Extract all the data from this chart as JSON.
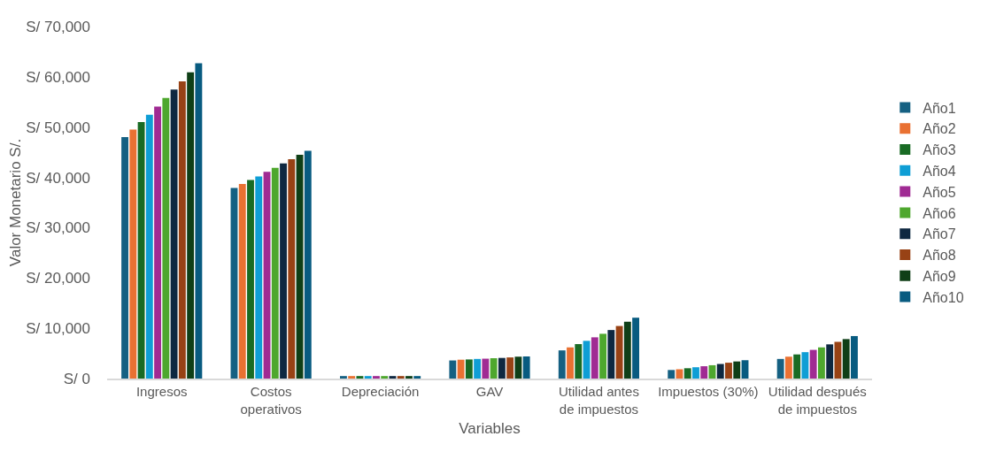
{
  "chart_data": {
    "type": "bar",
    "xlabel": "Variables",
    "ylabel": "Valor Monetario S/.",
    "categories": [
      "Ingresos",
      "Costos operativos",
      "Depreciación",
      "GAV",
      "Utilidad antes de impuestos",
      "Impuestos (30%)",
      "Utilidad después de impuestos"
    ],
    "ylim": [
      0,
      70000
    ],
    "yticks": [
      {
        "value": 0,
        "label": "S/ 0"
      },
      {
        "value": 10000,
        "label": "S/ 10,000"
      },
      {
        "value": 20000,
        "label": "S/ 20,000"
      },
      {
        "value": 30000,
        "label": "S/ 30,000"
      },
      {
        "value": 40000,
        "label": "S/ 40,000"
      },
      {
        "value": 50000,
        "label": "S/ 50,000"
      },
      {
        "value": 60000,
        "label": "S/ 60,000"
      },
      {
        "value": 70000,
        "label": "S/ 70,000"
      }
    ],
    "grid": false,
    "legend": "right",
    "series": [
      {
        "name": "Año1",
        "color": "#156082",
        "values": [
          48000,
          37900,
          500,
          3600,
          5600,
          1700,
          3900
        ]
      },
      {
        "name": "Año2",
        "color": "#e97132",
        "values": [
          49500,
          38700,
          500,
          3750,
          6200,
          1850,
          4350
        ]
      },
      {
        "name": "Año3",
        "color": "#196b24",
        "values": [
          51000,
          39500,
          500,
          3800,
          6850,
          2050,
          4800
        ]
      },
      {
        "name": "Año4",
        "color": "#0f9ed5",
        "values": [
          52450,
          40200,
          500,
          3900,
          7500,
          2250,
          5250
        ]
      },
      {
        "name": "Año5",
        "color": "#a02b93",
        "values": [
          54100,
          41100,
          500,
          3950,
          8200,
          2450,
          5700
        ]
      },
      {
        "name": "Año6",
        "color": "#4ea72e",
        "values": [
          55800,
          41900,
          500,
          4050,
          8900,
          2650,
          6200
        ]
      },
      {
        "name": "Año7",
        "color": "#0e2841",
        "values": [
          57450,
          42800,
          500,
          4100,
          9650,
          2900,
          6800
        ]
      },
      {
        "name": "Año8",
        "color": "#984215",
        "values": [
          59100,
          43600,
          500,
          4200,
          10450,
          3150,
          7300
        ]
      },
      {
        "name": "Año9",
        "color": "#0f3f17",
        "values": [
          60900,
          44500,
          500,
          4350,
          11300,
          3400,
          7850
        ]
      },
      {
        "name": "Año10",
        "color": "#085b80",
        "values": [
          62700,
          45300,
          500,
          4400,
          12100,
          3650,
          8450
        ]
      }
    ]
  }
}
